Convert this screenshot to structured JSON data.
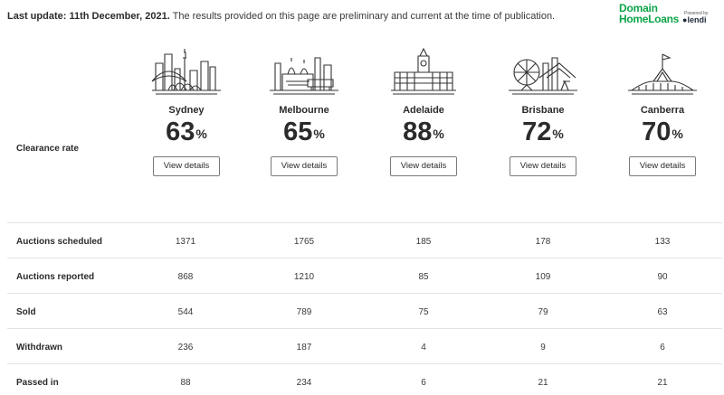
{
  "header": {
    "update_bold": "Last update: 11th December, 2021.",
    "update_rest": "The results provided on this page are preliminary and current at the time of publication."
  },
  "brand": {
    "line1": "Domain",
    "line2": "HomeLoans",
    "powered_by": "Powered by",
    "partner": "lendi"
  },
  "clearance_label": "Clearance rate",
  "view_details_label": "View details",
  "cities": [
    {
      "name": "Sydney",
      "rate": "63",
      "icon": "sydney-skyline-icon"
    },
    {
      "name": "Melbourne",
      "rate": "65",
      "icon": "melbourne-skyline-icon"
    },
    {
      "name": "Adelaide",
      "rate": "88",
      "icon": "adelaide-town-hall-icon"
    },
    {
      "name": "Brisbane",
      "rate": "72",
      "icon": "brisbane-skyline-icon"
    },
    {
      "name": "Canberra",
      "rate": "70",
      "icon": "canberra-parliament-icon"
    }
  ],
  "table": {
    "rows": [
      {
        "label": "Auctions scheduled",
        "values": [
          "1371",
          "1765",
          "185",
          "178",
          "133"
        ]
      },
      {
        "label": "Auctions reported",
        "values": [
          "868",
          "1210",
          "85",
          "109",
          "90"
        ]
      },
      {
        "label": "Sold",
        "values": [
          "544",
          "789",
          "75",
          "79",
          "63"
        ]
      },
      {
        "label": "Withdrawn",
        "values": [
          "236",
          "187",
          "4",
          "9",
          "6"
        ]
      },
      {
        "label": "Passed in",
        "values": [
          "88",
          "234",
          "6",
          "21",
          "21"
        ]
      }
    ]
  },
  "colors": {
    "brand_green": "#0ea54a",
    "text": "#2b2b2b",
    "divider": "#e3e3e3"
  }
}
